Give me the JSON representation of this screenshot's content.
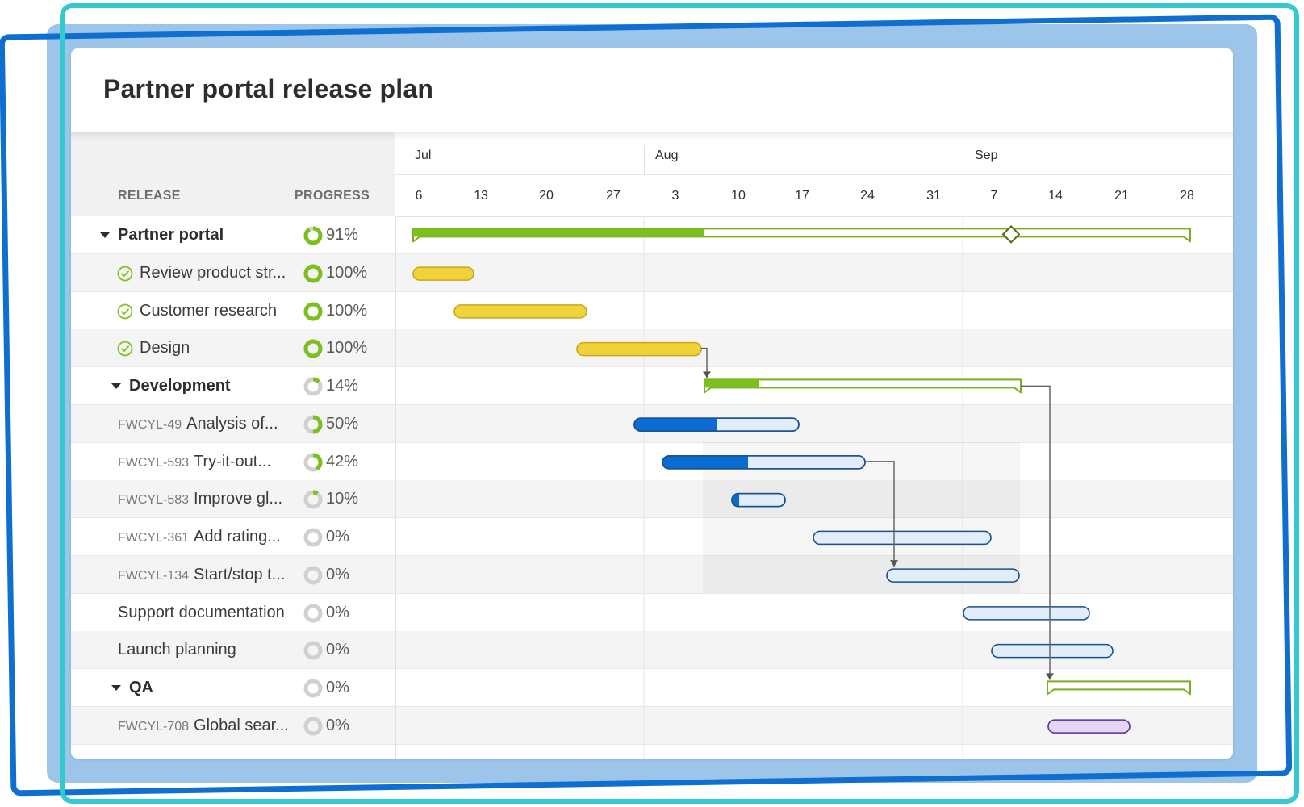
{
  "page": {
    "title": "Partner portal release plan"
  },
  "columns": {
    "release": "RELEASE",
    "progress": "PROGRESS"
  },
  "timeline": {
    "months": [
      "Jul",
      "Aug",
      "Sep"
    ],
    "days": [
      "6",
      "13",
      "20",
      "27",
      "3",
      "10",
      "17",
      "24",
      "31",
      "7",
      "14",
      "21",
      "28"
    ]
  },
  "colors": {
    "complete": "#7cbf1f",
    "in_progress_blue": "#0a6bd1",
    "light_blue": "#e1eefa",
    "yellow": "#f0d23a",
    "purple": "#e4d6f7",
    "purple_border": "#5d2e9b",
    "gray_ring": "#d0d0d0",
    "milestone_green": "#7aae1a"
  },
  "rows": [
    {
      "key": "",
      "label": "Partner portal",
      "progress": "91%",
      "kind": "group",
      "level": 0,
      "icon": "caret-down-icon",
      "status": "progress"
    },
    {
      "key": "",
      "label": "Review product str...",
      "progress": "100%",
      "kind": "feature",
      "level": 1,
      "icon": "check-circle-icon",
      "status": "done"
    },
    {
      "key": "",
      "label": "Customer research",
      "progress": "100%",
      "kind": "feature",
      "level": 1,
      "icon": "check-circle-icon",
      "status": "done"
    },
    {
      "key": "",
      "label": "Design",
      "progress": "100%",
      "kind": "feature",
      "level": 1,
      "icon": "check-circle-icon",
      "status": "done"
    },
    {
      "key": "",
      "label": "Development",
      "progress": "14%",
      "kind": "group",
      "level": 1,
      "icon": "caret-down-icon",
      "status": "progress"
    },
    {
      "key": "FWCYL-49",
      "label": "Analysis of...",
      "progress": "50%",
      "kind": "feature",
      "level": 1,
      "icon": "",
      "status": "progress"
    },
    {
      "key": "FWCYL-593",
      "label": "Try-it-out...",
      "progress": "42%",
      "kind": "feature",
      "level": 1,
      "icon": "",
      "status": "progress"
    },
    {
      "key": "FWCYL-583",
      "label": "Improve gl...",
      "progress": "10%",
      "kind": "feature",
      "level": 1,
      "icon": "",
      "status": "progress"
    },
    {
      "key": "FWCYL-361",
      "label": "Add rating...",
      "progress": "0%",
      "kind": "feature",
      "level": 1,
      "icon": "",
      "status": "none"
    },
    {
      "key": "FWCYL-134",
      "label": "Start/stop t...",
      "progress": "0%",
      "kind": "feature",
      "level": 1,
      "icon": "",
      "status": "none"
    },
    {
      "key": "",
      "label": "Support documentation",
      "progress": "0%",
      "kind": "feature",
      "level": 1,
      "icon": "",
      "status": "none"
    },
    {
      "key": "",
      "label": "Launch planning",
      "progress": "0%",
      "kind": "feature",
      "level": 1,
      "icon": "",
      "status": "none"
    },
    {
      "key": "",
      "label": "QA",
      "progress": "0%",
      "kind": "group",
      "level": 1,
      "icon": "caret-down-icon",
      "status": "none"
    },
    {
      "key": "FWCYL-708",
      "label": "Global sear...",
      "progress": "0%",
      "kind": "feature",
      "level": 1,
      "icon": "",
      "status": "none"
    }
  ]
}
